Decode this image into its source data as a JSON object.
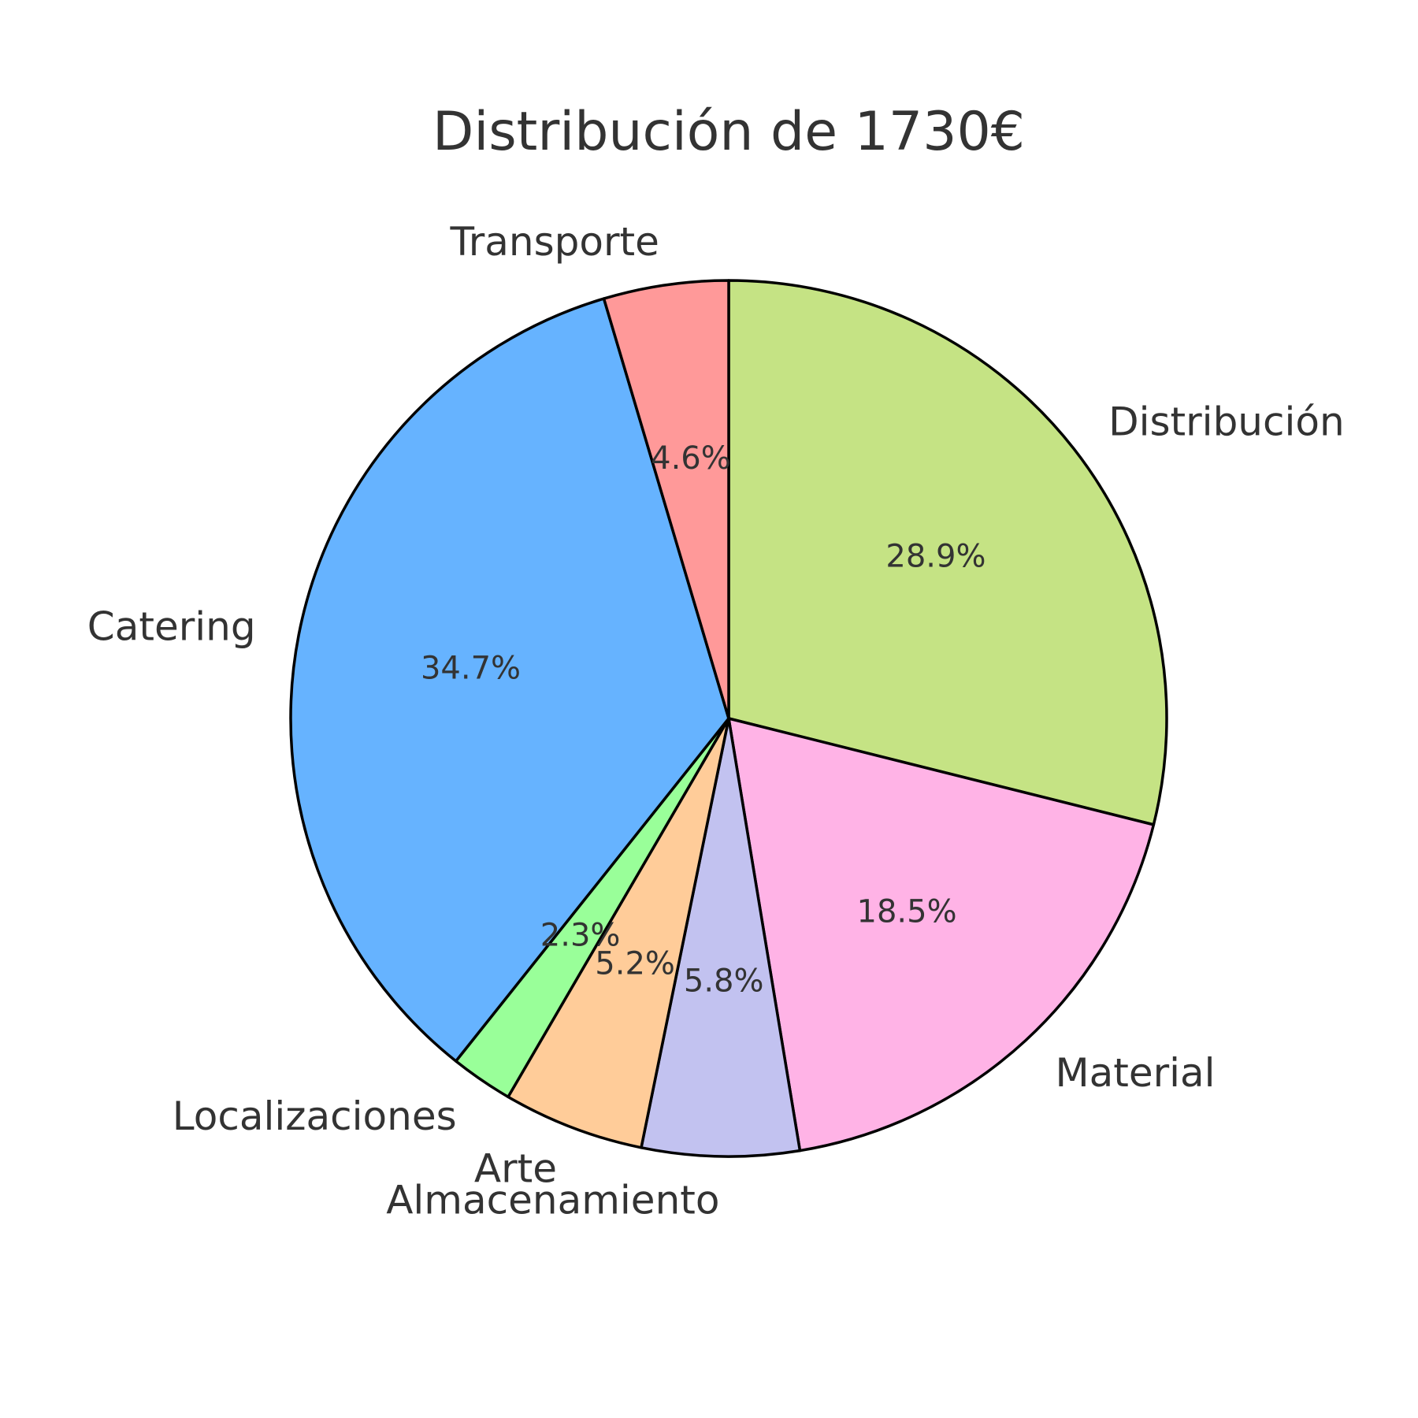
{
  "chart_data": {
    "type": "pie",
    "title": "Distribución de 1730€",
    "start_angle_deg": 90,
    "direction": "clockwise",
    "slices": [
      {
        "label": "Distribución",
        "value": 28.9,
        "pct_label": "28.9%",
        "color": "#c5e384"
      },
      {
        "label": "Material",
        "value": 18.5,
        "pct_label": "18.5%",
        "color": "#ffb3e6"
      },
      {
        "label": "Almacenamiento",
        "value": 5.8,
        "pct_label": "5.8%",
        "color": "#c2c2f0"
      },
      {
        "label": "Arte",
        "value": 5.2,
        "pct_label": "5.2%",
        "color": "#ffcc99"
      },
      {
        "label": "Localizaciones",
        "value": 2.3,
        "pct_label": "2.3%",
        "color": "#99ff99"
      },
      {
        "label": "Catering",
        "value": 34.7,
        "pct_label": "34.7%",
        "color": "#66b3ff"
      },
      {
        "label": "Transporte",
        "value": 4.6,
        "pct_label": "4.6%",
        "color": "#ff9999"
      }
    ],
    "edge_color": "#000000",
    "text_color": "#333333",
    "legend": "none"
  }
}
